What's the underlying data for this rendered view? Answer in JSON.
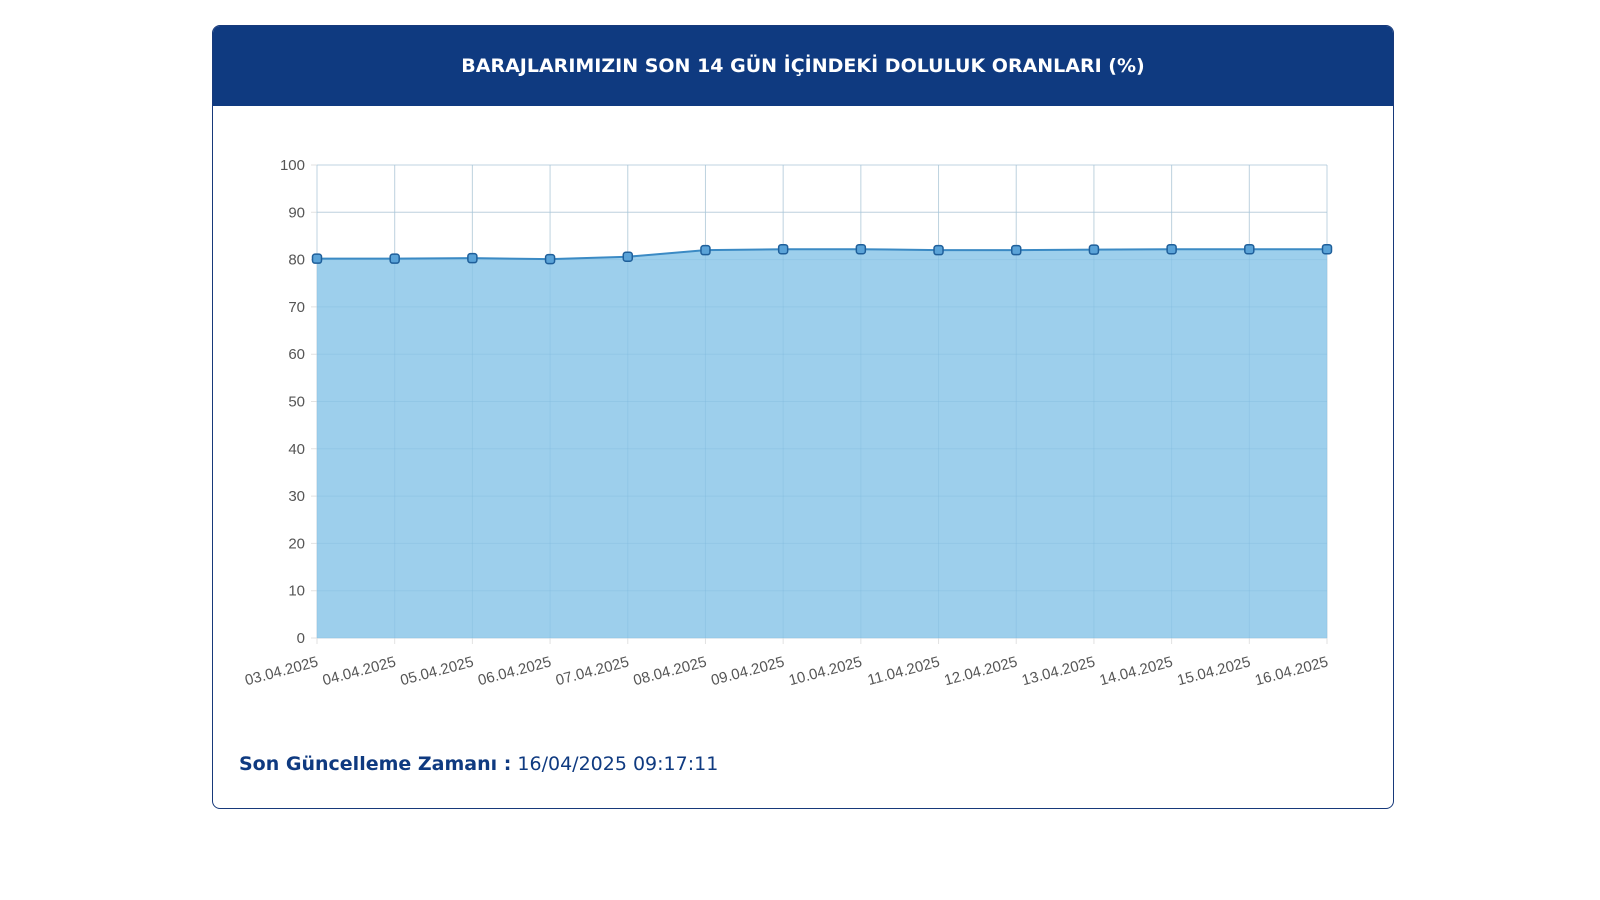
{
  "header": {
    "title": "BARAJLARIMIZIN SON 14 GÜN İÇİNDEKİ DOLULUK ORANLARI (%)"
  },
  "footer": {
    "label": "Son Güncelleme Zamanı :",
    "value": "16/04/2025 09:17:11"
  },
  "colors": {
    "header_bg": "#0f3a80",
    "area_fill": "#9dcfec",
    "line": "#3b8ac4",
    "point_fill": "#5aa3d8",
    "point_stroke": "#1f5f9a",
    "grid": "#e2e2e2"
  },
  "chart_data": {
    "type": "area",
    "x": [
      "03.04.2025",
      "04.04.2025",
      "05.04.2025",
      "06.04.2025",
      "07.04.2025",
      "08.04.2025",
      "09.04.2025",
      "10.04.2025",
      "11.04.2025",
      "12.04.2025",
      "13.04.2025",
      "14.04.2025",
      "15.04.2025",
      "16.04.2025"
    ],
    "series": [
      {
        "values": [
          80.2,
          80.2,
          80.3,
          80.1,
          80.6,
          82.0,
          82.2,
          82.2,
          82.0,
          82.0,
          82.1,
          82.2,
          82.2,
          82.2
        ]
      }
    ],
    "ylim": [
      0,
      100
    ],
    "yticks": [
      0,
      10,
      20,
      30,
      40,
      50,
      60,
      70,
      80,
      90,
      100
    ],
    "grid": true,
    "legend": "none"
  }
}
